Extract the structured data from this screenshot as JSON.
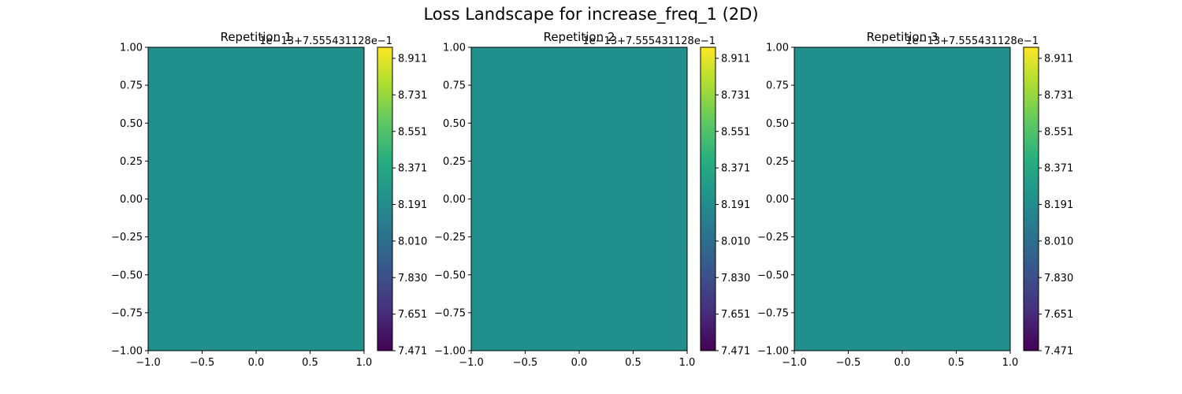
{
  "figure": {
    "suptitle": "Loss Landscape for increase_freq_1 (2D)"
  },
  "chart_data": [
    {
      "type": "heatmap",
      "title": "Repetition 1",
      "xlim": [
        -1.0,
        1.0
      ],
      "ylim": [
        -1.0,
        1.0
      ],
      "x_ticks": [
        "−1.0",
        "−0.5",
        "0.0",
        "0.5",
        "1.0"
      ],
      "y_ticks": [
        "1.00",
        "0.75",
        "0.50",
        "0.25",
        "0.00",
        "−0.25",
        "−0.50",
        "−0.75",
        "−1.00"
      ],
      "fill_color": "#21908d",
      "colorbar": {
        "offset_text": "1e−13+7.555431128e−1",
        "ticks": [
          "8.911",
          "8.731",
          "8.551",
          "8.371",
          "8.191",
          "8.010",
          "7.830",
          "7.651",
          "7.471"
        ],
        "range": [
          7.471,
          8.911
        ],
        "colormap": "viridis"
      },
      "grid": false
    },
    {
      "type": "heatmap",
      "title": "Repetition 2",
      "xlim": [
        -1.0,
        1.0
      ],
      "ylim": [
        -1.0,
        1.0
      ],
      "x_ticks": [
        "−1.0",
        "−0.5",
        "0.0",
        "0.5",
        "1.0"
      ],
      "y_ticks": [
        "1.00",
        "0.75",
        "0.50",
        "0.25",
        "0.00",
        "−0.25",
        "−0.50",
        "−0.75",
        "−1.00"
      ],
      "fill_color": "#21908d",
      "colorbar": {
        "offset_text": "1e−13+7.555431128e−1",
        "ticks": [
          "8.911",
          "8.731",
          "8.551",
          "8.371",
          "8.191",
          "8.010",
          "7.830",
          "7.651",
          "7.471"
        ],
        "range": [
          7.471,
          8.911
        ],
        "colormap": "viridis"
      },
      "grid": false
    },
    {
      "type": "heatmap",
      "title": "Repetition 3",
      "xlim": [
        -1.0,
        1.0
      ],
      "ylim": [
        -1.0,
        1.0
      ],
      "x_ticks": [
        "−1.0",
        "−0.5",
        "0.0",
        "0.5",
        "1.0"
      ],
      "y_ticks": [
        "1.00",
        "0.75",
        "0.50",
        "0.25",
        "0.00",
        "−0.25",
        "−0.50",
        "−0.75",
        "−1.00"
      ],
      "fill_color": "#21908d",
      "colorbar": {
        "offset_text": "1e−13+7.555431128e−1",
        "ticks": [
          "8.911",
          "8.731",
          "8.551",
          "8.371",
          "8.191",
          "8.010",
          "7.830",
          "7.651",
          "7.471"
        ],
        "range": [
          7.471,
          8.911
        ],
        "colormap": "viridis"
      },
      "grid": false
    }
  ]
}
